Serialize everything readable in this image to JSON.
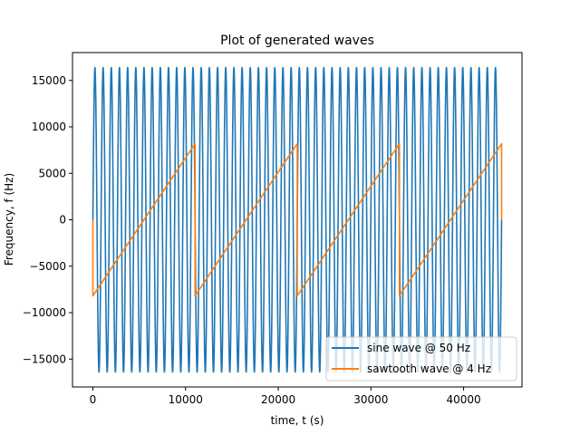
{
  "chart_data": {
    "type": "line",
    "title": "Plot of generated waves",
    "xlabel": "time, t (s)",
    "ylabel": "Frequency, f (Hz)",
    "xlim": [
      -2200,
      46300
    ],
    "ylim": [
      -18000,
      18000
    ],
    "xticks": [
      0,
      10000,
      20000,
      30000,
      40000
    ],
    "yticks": [
      -15000,
      -10000,
      -5000,
      0,
      5000,
      10000,
      15000
    ],
    "legend_position": "lower-right",
    "grid": false,
    "series": [
      {
        "name": "sine wave @ 50 Hz",
        "color": "#1f77b4",
        "kind": "sine",
        "amplitude": 16384,
        "cycles": 50,
        "x_start": 0,
        "x_end": 44100
      },
      {
        "name": "sawtooth wave @ 4 Hz",
        "color": "#ff7f0e",
        "kind": "sawtooth",
        "amplitude": 8192,
        "cycles": 4,
        "x_start": 0,
        "x_end": 44100
      }
    ]
  }
}
